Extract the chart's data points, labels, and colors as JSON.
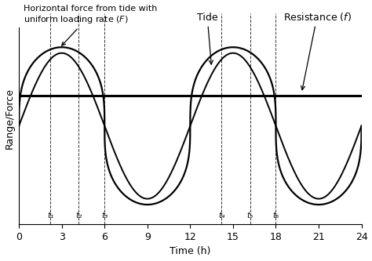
{
  "title": "",
  "xlabel": "Time (h)",
  "ylabel": "Range/Force",
  "xlim": [
    0,
    24
  ],
  "ylim": [
    -1.35,
    1.55
  ],
  "xticks": [
    0,
    3,
    6,
    9,
    12,
    15,
    18,
    21,
    24
  ],
  "resistance_level": 0.42,
  "tide_amplitude": 1.0,
  "tide_period": 12.0,
  "F_amplitude": 1.08,
  "F_exponent": 0.32,
  "t_lines": [
    2.2,
    4.2,
    6.0,
    14.2,
    16.2,
    18.0
  ],
  "t_labels": [
    "t₁",
    "t₂",
    "t₃",
    "t₄",
    "t₅",
    "t₆"
  ],
  "line_color": "#000000",
  "background_color": "#ffffff",
  "fontsize_labels": 9,
  "fontsize_ticks": 9,
  "fontsize_annot": 8
}
